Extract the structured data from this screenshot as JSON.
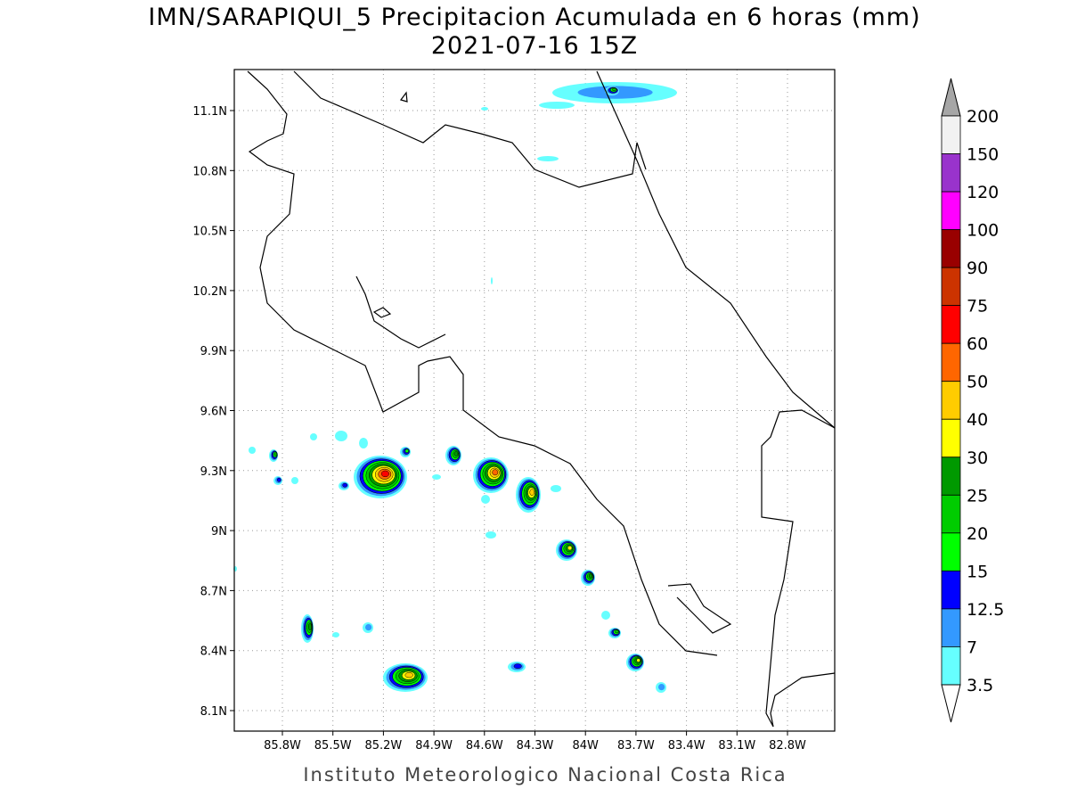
{
  "title": "IMN/SARAPIQUI_5 Precipitacion Acumulada en 6 horas (mm)",
  "subtitle": "2021-07-16 15Z",
  "footer": "Instituto Meteorologico Nacional Costa Rica",
  "map": {
    "lat_labels": [
      "11.1N",
      "10.8N",
      "10.5N",
      "10.2N",
      "9.9N",
      "9.6N",
      "9.3N",
      "9N",
      "8.7N",
      "8.4N",
      "8.1N"
    ],
    "lon_labels": [
      "85.8W",
      "85.5W",
      "85.2W",
      "84.9W",
      "84.6W",
      "84.3W",
      "84W",
      "83.7W",
      "83.4W",
      "83.1W",
      "82.8W"
    ]
  },
  "colorbar": {
    "levels": [
      200,
      150,
      120,
      100,
      90,
      75,
      60,
      50,
      40,
      30,
      25,
      20,
      15,
      12.5,
      7,
      3.5
    ],
    "colors": [
      "#f2f2f2",
      "#9933cc",
      "#ff00ff",
      "#990000",
      "#cc3300",
      "#ff0000",
      "#ff6600",
      "#ffcc00",
      "#ffff00",
      "#009900",
      "#00cc00",
      "#00ff00",
      "#0000ff",
      "#3399ff",
      "#66ffff"
    ],
    "over_color": "#a6a6a6",
    "under_color": "#ffffff"
  }
}
